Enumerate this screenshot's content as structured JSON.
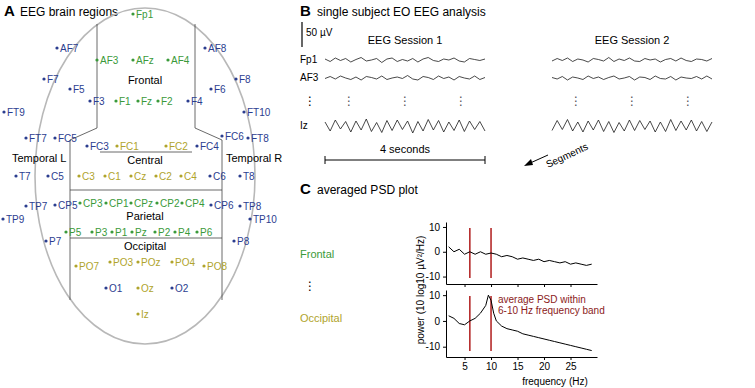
{
  "panel_a": {
    "letter": "A",
    "title": "EEG brain regions",
    "regions": [
      "Frontal",
      "Central",
      "Parietal",
      "Occipital",
      "Temporal L",
      "Temporal R"
    ],
    "electrodes": [
      {
        "label": "Fp1",
        "color": "#3a9a3a"
      },
      {
        "label": "AF7",
        "color": "#2b3d8f"
      },
      {
        "label": "AF3",
        "color": "#3a9a3a"
      },
      {
        "label": "AFz",
        "color": "#3a9a3a"
      },
      {
        "label": "AF4",
        "color": "#3a9a3a"
      },
      {
        "label": "AF8",
        "color": "#2b3d8f"
      },
      {
        "label": "F7",
        "color": "#2b3d8f"
      },
      {
        "label": "F5",
        "color": "#2b3d8f"
      },
      {
        "label": "F3",
        "color": "#2b3d8f"
      },
      {
        "label": "F1",
        "color": "#3a9a3a"
      },
      {
        "label": "Fz",
        "color": "#3a9a3a"
      },
      {
        "label": "F2",
        "color": "#3a9a3a"
      },
      {
        "label": "F4",
        "color": "#2b3d8f"
      },
      {
        "label": "F6",
        "color": "#2b3d8f"
      },
      {
        "label": "F8",
        "color": "#2b3d8f"
      },
      {
        "label": "FT9",
        "color": "#2b3d8f"
      },
      {
        "label": "FT10",
        "color": "#2b3d8f"
      },
      {
        "label": "FT7",
        "color": "#2b3d8f"
      },
      {
        "label": "FC5",
        "color": "#2b3d8f"
      },
      {
        "label": "FC3",
        "color": "#2b3d8f"
      },
      {
        "label": "FC1",
        "color": "#b0a42c"
      },
      {
        "label": "FC2",
        "color": "#b0a42c"
      },
      {
        "label": "FC4",
        "color": "#2b3d8f"
      },
      {
        "label": "FC6",
        "color": "#2b3d8f"
      },
      {
        "label": "FT8",
        "color": "#2b3d8f"
      },
      {
        "label": "T7",
        "color": "#2b3d8f"
      },
      {
        "label": "C5",
        "color": "#2b3d8f"
      },
      {
        "label": "C3",
        "color": "#b0a42c"
      },
      {
        "label": "C1",
        "color": "#b0a42c"
      },
      {
        "label": "Cz",
        "color": "#b0a42c"
      },
      {
        "label": "C2",
        "color": "#b0a42c"
      },
      {
        "label": "C4",
        "color": "#b0a42c"
      },
      {
        "label": "C6",
        "color": "#2b3d8f"
      },
      {
        "label": "T8",
        "color": "#2b3d8f"
      },
      {
        "label": "TP9",
        "color": "#2b3d8f"
      },
      {
        "label": "TP7",
        "color": "#2b3d8f"
      },
      {
        "label": "CP5",
        "color": "#2b3d8f"
      },
      {
        "label": "CP3",
        "color": "#3a9a3a"
      },
      {
        "label": "CP1",
        "color": "#3a9a3a"
      },
      {
        "label": "CPz",
        "color": "#3a9a3a"
      },
      {
        "label": "CP2",
        "color": "#3a9a3a"
      },
      {
        "label": "CP4",
        "color": "#3a9a3a"
      },
      {
        "label": "CP6",
        "color": "#2b3d8f"
      },
      {
        "label": "TP8",
        "color": "#2b3d8f"
      },
      {
        "label": "TP10",
        "color": "#2b3d8f"
      },
      {
        "label": "P7",
        "color": "#2b3d8f"
      },
      {
        "label": "P5",
        "color": "#3a9a3a"
      },
      {
        "label": "P3",
        "color": "#3a9a3a"
      },
      {
        "label": "P1",
        "color": "#3a9a3a"
      },
      {
        "label": "Pz",
        "color": "#3a9a3a"
      },
      {
        "label": "P2",
        "color": "#3a9a3a"
      },
      {
        "label": "P4",
        "color": "#3a9a3a"
      },
      {
        "label": "P6",
        "color": "#3a9a3a"
      },
      {
        "label": "P8",
        "color": "#2b3d8f"
      },
      {
        "label": "PO7",
        "color": "#b0a42c"
      },
      {
        "label": "PO3",
        "color": "#b0a42c"
      },
      {
        "label": "POz",
        "color": "#b0a42c"
      },
      {
        "label": "PO4",
        "color": "#b0a42c"
      },
      {
        "label": "PO8",
        "color": "#b0a42c"
      },
      {
        "label": "O1",
        "color": "#2b3d8f"
      },
      {
        "label": "Oz",
        "color": "#b0a42c"
      },
      {
        "label": "O2",
        "color": "#2b3d8f"
      },
      {
        "label": "Iz",
        "color": "#b0a42c"
      }
    ]
  },
  "panel_b": {
    "letter": "B",
    "title": "single subject EO EEG analysis",
    "amplitude_bar": {
      "value": 50,
      "label": "50 µV"
    },
    "time_bar": {
      "value": 4,
      "label": "4 seconds"
    },
    "segments_label": "Segments",
    "ellipsis": "⋮",
    "channels": [
      "Fp1",
      "AF3",
      "Iz"
    ],
    "sessions": [
      {
        "title": "EEG Session 1",
        "traces": [
          {
            "values": [
              2,
              -3,
              4,
              -1,
              3,
              -4,
              1,
              5,
              -2,
              0,
              3,
              -5,
              2,
              4,
              -3,
              1,
              -2,
              3,
              -4,
              2,
              5,
              -1,
              -3,
              2,
              0,
              4,
              -2,
              -4,
              3,
              1,
              -1,
              2
            ]
          },
          {
            "values": [
              -1,
              3,
              -2,
              4,
              0,
              -3,
              2,
              -4,
              3,
              1,
              -2,
              4,
              -3,
              0,
              2,
              -1,
              5,
              -2,
              -4,
              3,
              1,
              -3,
              4,
              -1,
              2,
              -4,
              3,
              0,
              -2,
              4,
              -3,
              1
            ]
          },
          {
            "values": [
              8,
              -10,
              12,
              -6,
              9,
              -12,
              10,
              -8,
              14,
              -11,
              7,
              -13,
              11,
              -9,
              12,
              -7,
              10,
              -14,
              9,
              -10,
              13,
              -8,
              11,
              -12,
              8,
              -9,
              12,
              -11,
              10,
              -7,
              9,
              -10
            ]
          }
        ]
      },
      {
        "title": "EEG Session 2",
        "traces": [
          {
            "values": [
              -2,
              3,
              -1,
              4,
              -3,
              2,
              0,
              -4,
              3,
              1,
              -2,
              5,
              -3,
              2,
              -1,
              4,
              -2,
              -3,
              3,
              0,
              2,
              -4,
              1,
              3,
              -2,
              4,
              -1,
              -3,
              2,
              1,
              -2,
              3
            ]
          },
          {
            "values": [
              1,
              -2,
              3,
              -4,
              2,
              0,
              -3,
              4,
              -1,
              2,
              -3,
              1,
              4,
              -2,
              0,
              3,
              -4,
              2,
              1,
              -3,
              4,
              -1,
              -2,
              3,
              -4,
              2,
              0,
              -1,
              3,
              -2,
              4,
              -2
            ]
          },
          {
            "values": [
              -9,
              11,
              -7,
              13,
              -10,
              8,
              -12,
              10,
              -8,
              12,
              -11,
              9,
              -13,
              7,
              -10,
              12,
              -9,
              11,
              -7,
              10,
              -12,
              8,
              -11,
              13,
              -9,
              10,
              -8,
              12,
              -10,
              9,
              -11,
              8
            ]
          }
        ]
      }
    ]
  },
  "panel_c": {
    "letter": "C",
    "title": "averaged PSD plot",
    "ellipsis": "⋮",
    "y_label": "power (10 log10 µV²/Hz)",
    "x_label": "frequency (Hz)"
  },
  "chart_data": [
    {
      "type": "line",
      "title": "Frontal",
      "color": "#000000",
      "x": [
        2,
        3,
        4,
        5,
        6,
        7,
        8,
        9,
        10,
        11,
        12,
        13,
        14,
        15,
        16,
        17,
        18,
        19,
        20,
        21,
        22,
        23,
        24,
        25,
        26,
        27,
        28,
        29
      ],
      "values": [
        2,
        0,
        1,
        -1,
        0,
        -1,
        0,
        -1,
        -0.5,
        -1,
        -2,
        -1.5,
        -2,
        -3,
        -2.5,
        -3,
        -3.5,
        -3,
        -4,
        -3.5,
        -4,
        -4.5,
        -4,
        -5,
        -4.5,
        -5,
        -5.5,
        -5
      ],
      "xlim": [
        1.5,
        30
      ],
      "xticks": [
        5,
        10,
        15,
        20,
        25
      ],
      "ylim": [
        -13,
        12
      ],
      "yticks": [
        10,
        0,
        -10
      ],
      "band": [
        6,
        10
      ],
      "tick_labels": "y"
    },
    {
      "type": "line",
      "title": "Occipital",
      "color": "#000000",
      "x": [
        2,
        3,
        4,
        5,
        6,
        7,
        8,
        9,
        9.5,
        10,
        10.5,
        11,
        12,
        13,
        14,
        15,
        16,
        17,
        18,
        19,
        20,
        21,
        22,
        23,
        24,
        25,
        26,
        27,
        28,
        29
      ],
      "values": [
        2,
        1,
        -1,
        -1.5,
        0,
        1,
        3,
        6,
        10,
        8,
        3,
        0,
        -2,
        -3,
        -3.5,
        -4,
        -5,
        -5.5,
        -6,
        -6.5,
        -7,
        -7.5,
        -8,
        -8.5,
        -9,
        -9.5,
        -10,
        -10.5,
        -11,
        -11.5
      ],
      "xlim": [
        1.5,
        30
      ],
      "xticks": [
        5,
        10,
        15,
        20,
        25
      ],
      "ylim": [
        -14,
        12
      ],
      "yticks": [
        10,
        0,
        -10
      ],
      "band": [
        6,
        10
      ],
      "annotation": [
        "average PSD within",
        "6-10 Hz frequency band"
      ]
    }
  ]
}
